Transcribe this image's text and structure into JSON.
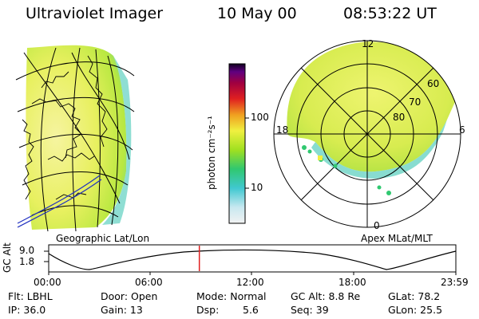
{
  "header": {
    "instrument": "Ultraviolet Imager",
    "date": "10 May 00",
    "time": "08:53:22 UT"
  },
  "colorbar": {
    "unit_label": "photon cm⁻²s⁻¹",
    "ticks": [
      "100",
      "10"
    ],
    "colors": [
      "#f2f2f2",
      "#c8e8f0",
      "#40c8d0",
      "#30c870",
      "#a0e020",
      "#f0f040",
      "#f0a020",
      "#e02020",
      "#a00040",
      "#600080",
      "#100020"
    ]
  },
  "polar": {
    "lat_labels": [
      "60",
      "70",
      "80"
    ],
    "mlt_labels": {
      "top": "12",
      "left": "18",
      "right": "6",
      "bottom": "0"
    }
  },
  "panel_labels": {
    "geographic": "Geographic Lat/Lon",
    "apex": "Apex  MLat/MLT"
  },
  "timeline": {
    "axis_title": "GC Alt",
    "y_ticks": [
      "9.0",
      "1.8"
    ],
    "x_ticks": [
      "00:00",
      "06:00",
      "12:00",
      "18:00",
      "23:59"
    ],
    "current_time_fraction": 0.37,
    "current_marker_color": "#e02020"
  },
  "info": {
    "row1": {
      "flt": "Flt: LBHL",
      "door": "Door: Open",
      "mode": "Mode: Normal",
      "gcalt": "GC Alt: 8.8 Re",
      "glat": "GLat: 78.2"
    },
    "row2": {
      "ip": "IP: 36.0",
      "gain": "Gain: 13",
      "dsp_label": "Dsp:",
      "dsp_value": "5.6",
      "seq": "Seq: 39",
      "glon": "GLon:  25.5"
    }
  }
}
